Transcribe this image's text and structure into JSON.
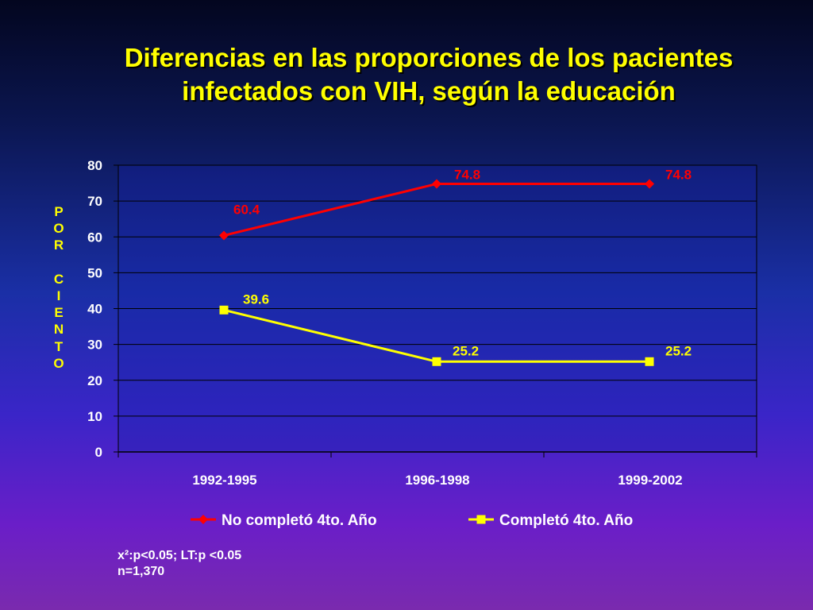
{
  "title_line1": "Diferencias en las proporciones de los pacientes",
  "title_line2": "infectados con VIH, según la educación",
  "notes": {
    "line1": "x²:p<0.05;  LT:p <0.05",
    "line2": "n=1,370"
  },
  "colors": {
    "title": "#ffff00",
    "series_red": "#ff0000",
    "series_yellow": "#ffff00",
    "axis_text": "#ffffff",
    "plot_bg": "#1822a8"
  },
  "chart_data": {
    "type": "line",
    "categories": [
      "1992-1995",
      "1996-1998",
      "1999-2002"
    ],
    "ylabel": "POR CIENTO",
    "ylim": [
      0,
      80
    ],
    "yticks": [
      0,
      10,
      20,
      30,
      40,
      50,
      60,
      70,
      80
    ],
    "grid": true,
    "legend_position": "bottom",
    "series": [
      {
        "name": "No completó 4to. Año",
        "values": [
          60.4,
          74.8,
          74.8
        ],
        "color": "#ff0000",
        "marker": "diamond",
        "label_color": "#ff0000"
      },
      {
        "name": "Completó 4to. Año",
        "values": [
          39.6,
          25.2,
          25.2
        ],
        "color": "#ffff00",
        "marker": "square",
        "label_color": "#ffff00"
      }
    ]
  }
}
